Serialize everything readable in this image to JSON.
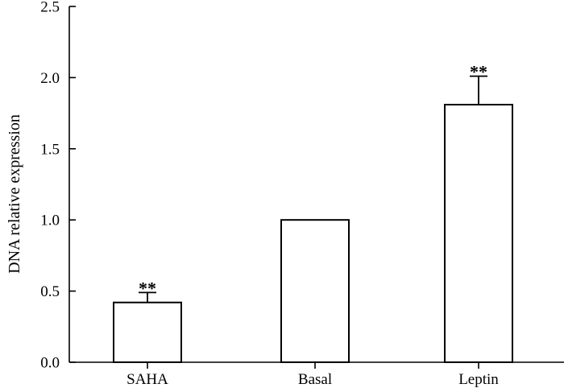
{
  "chart_data": {
    "type": "bar",
    "title": "",
    "xlabel": "",
    "ylabel": "DNA relative expression",
    "categories": [
      "SAHA",
      "Basal",
      "Leptin"
    ],
    "values": [
      0.42,
      1.0,
      1.81
    ],
    "error_bars": [
      0.07,
      0.0,
      0.2
    ],
    "significance": [
      "**",
      "",
      "**"
    ],
    "ylim": [
      0,
      2.5
    ],
    "yticks": [
      0.0,
      0.5,
      1.0,
      1.5,
      2.0,
      2.5
    ],
    "ytick_labels": [
      "0.0",
      "0.5",
      "1.0",
      "1.5",
      "2.0",
      "2.5"
    ],
    "grid": false,
    "bar_fill": "#ffffff",
    "bar_stroke": "#000000"
  }
}
